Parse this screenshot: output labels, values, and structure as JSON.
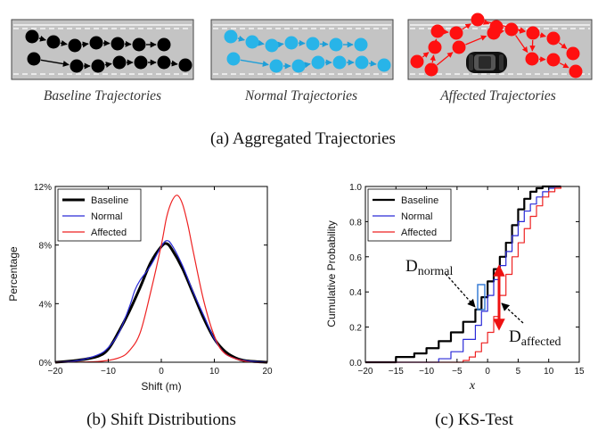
{
  "panel_a": {
    "caption": "(a) Aggregated Trajectories",
    "roads": [
      {
        "label": "Baseline Trajectories",
        "dot_color": "#000000",
        "line_color": "#000000"
      },
      {
        "label": "Normal Trajectories",
        "dot_color": "#28b4e8",
        "line_color": "#1e9fd8"
      },
      {
        "label": "Affected Trajectories",
        "dot_color": "#ff1010",
        "line_color": "#ff1010"
      }
    ],
    "road_color": "#c4c4c4",
    "lane_color": "#ffffff",
    "obstacle": "car-icon"
  },
  "panel_b": {
    "caption": "(b) Shift Distributions",
    "chart_data": {
      "type": "line",
      "xlabel": "Shift (m)",
      "ylabel": "Percentage",
      "xlim": [
        -20,
        20
      ],
      "ylim": [
        0,
        12
      ],
      "xticks": [
        -20,
        -10,
        0,
        10,
        20
      ],
      "xtick_labels": [
        "−20",
        "−10",
        "0",
        "10",
        "20"
      ],
      "yticks": [
        0,
        4,
        8,
        12
      ],
      "ytick_labels": [
        "0%",
        "4%",
        "8%",
        "12%"
      ],
      "legend_position": "top-left",
      "series": [
        {
          "name": "Baseline",
          "color": "#000000",
          "width": 3,
          "x": [
            -20,
            -16,
            -12,
            -10,
            -8,
            -6,
            -4,
            -2,
            0,
            1,
            2,
            4,
            6,
            8,
            10,
            12,
            14,
            16,
            20
          ],
          "y": [
            0,
            0.12,
            0.4,
            0.9,
            2.1,
            3.5,
            5.1,
            6.8,
            7.9,
            8.1,
            7.7,
            6.4,
            4.7,
            3.0,
            1.6,
            0.75,
            0.3,
            0.1,
            0
          ]
        },
        {
          "name": "Normal",
          "color": "#2a2ad8",
          "width": 1.2,
          "x": [
            -20,
            -16,
            -12,
            -10,
            -8,
            -6,
            -5,
            -4,
            -2,
            0,
            1,
            2,
            4,
            6,
            8,
            10,
            12,
            14,
            16,
            20
          ],
          "y": [
            0,
            0.1,
            0.5,
            1.0,
            2.0,
            3.8,
            4.9,
            5.6,
            6.6,
            7.9,
            8.3,
            8.0,
            6.6,
            4.8,
            3.2,
            1.6,
            0.6,
            0.25,
            0.1,
            0
          ]
        },
        {
          "name": "Affected",
          "color": "#ee2222",
          "width": 1.2,
          "x": [
            -20,
            -12,
            -8,
            -6,
            -4,
            -2,
            0,
            1,
            2,
            3,
            4,
            5,
            6,
            8,
            10,
            12,
            16,
            20
          ],
          "y": [
            0,
            0.05,
            0.3,
            0.8,
            2.0,
            4.8,
            8.0,
            9.9,
            11.0,
            11.4,
            10.8,
            9.4,
            7.6,
            4.2,
            1.8,
            0.6,
            0.05,
            0
          ]
        }
      ]
    }
  },
  "panel_c": {
    "caption": "(c) KS-Test",
    "annotations": {
      "d_normal_main": "D",
      "d_normal_sub": "normal",
      "d_affected_main": "D",
      "d_affected_sub": "affected"
    },
    "chart_data": {
      "type": "line",
      "xlabel": "x",
      "ylabel": "Cumulative Probability",
      "xlim": [
        -20,
        15
      ],
      "ylim": [
        0,
        1
      ],
      "xticks": [
        -20,
        -15,
        -10,
        -5,
        0,
        5,
        10,
        15
      ],
      "xtick_labels": [
        "−20",
        "−15",
        "−10",
        "−5",
        "0",
        "5",
        "10",
        "15"
      ],
      "yticks": [
        0,
        0.2,
        0.4,
        0.6,
        0.8,
        1.0
      ],
      "ytick_labels": [
        "0.0",
        "0.2",
        "0.4",
        "0.6",
        "0.8",
        "1.0"
      ],
      "legend_position": "top-left",
      "series": [
        {
          "name": "Baseline",
          "color": "#000000",
          "width": 2.2,
          "x": [
            -20,
            -16.5,
            -15,
            -12,
            -10,
            -8,
            -6,
            -4,
            -2,
            -1,
            0,
            1,
            2,
            3,
            4,
            5,
            6,
            7,
            8,
            9,
            12
          ],
          "y": [
            0,
            0,
            0.03,
            0.05,
            0.08,
            0.12,
            0.17,
            0.23,
            0.3,
            0.37,
            0.46,
            0.53,
            0.6,
            0.68,
            0.78,
            0.87,
            0.93,
            0.97,
            0.99,
            1.0,
            1.0
          ]
        },
        {
          "name": "Normal",
          "color": "#2a2ad8",
          "width": 1.2,
          "x": [
            -20,
            -9.5,
            -8,
            -6,
            -4,
            -2,
            -1,
            0,
            1,
            2,
            3,
            4,
            5,
            6,
            7,
            8,
            9,
            10,
            11,
            12
          ],
          "y": [
            0,
            0,
            0.02,
            0.06,
            0.13,
            0.21,
            0.29,
            0.38,
            0.47,
            0.55,
            0.63,
            0.72,
            0.8,
            0.86,
            0.9,
            0.94,
            0.97,
            0.99,
            1.0,
            1.0
          ]
        },
        {
          "name": "Affected",
          "color": "#ee2222",
          "width": 1.2,
          "x": [
            -20,
            -5,
            -4,
            -3,
            -2,
            -1,
            0,
            1,
            2,
            3,
            4,
            5,
            6,
            7,
            8,
            9,
            10,
            11,
            12
          ],
          "y": [
            0,
            0,
            0.01,
            0.03,
            0.06,
            0.11,
            0.17,
            0.26,
            0.38,
            0.5,
            0.6,
            0.68,
            0.76,
            0.83,
            0.89,
            0.94,
            0.97,
            0.99,
            1.0
          ]
        }
      ]
    }
  }
}
